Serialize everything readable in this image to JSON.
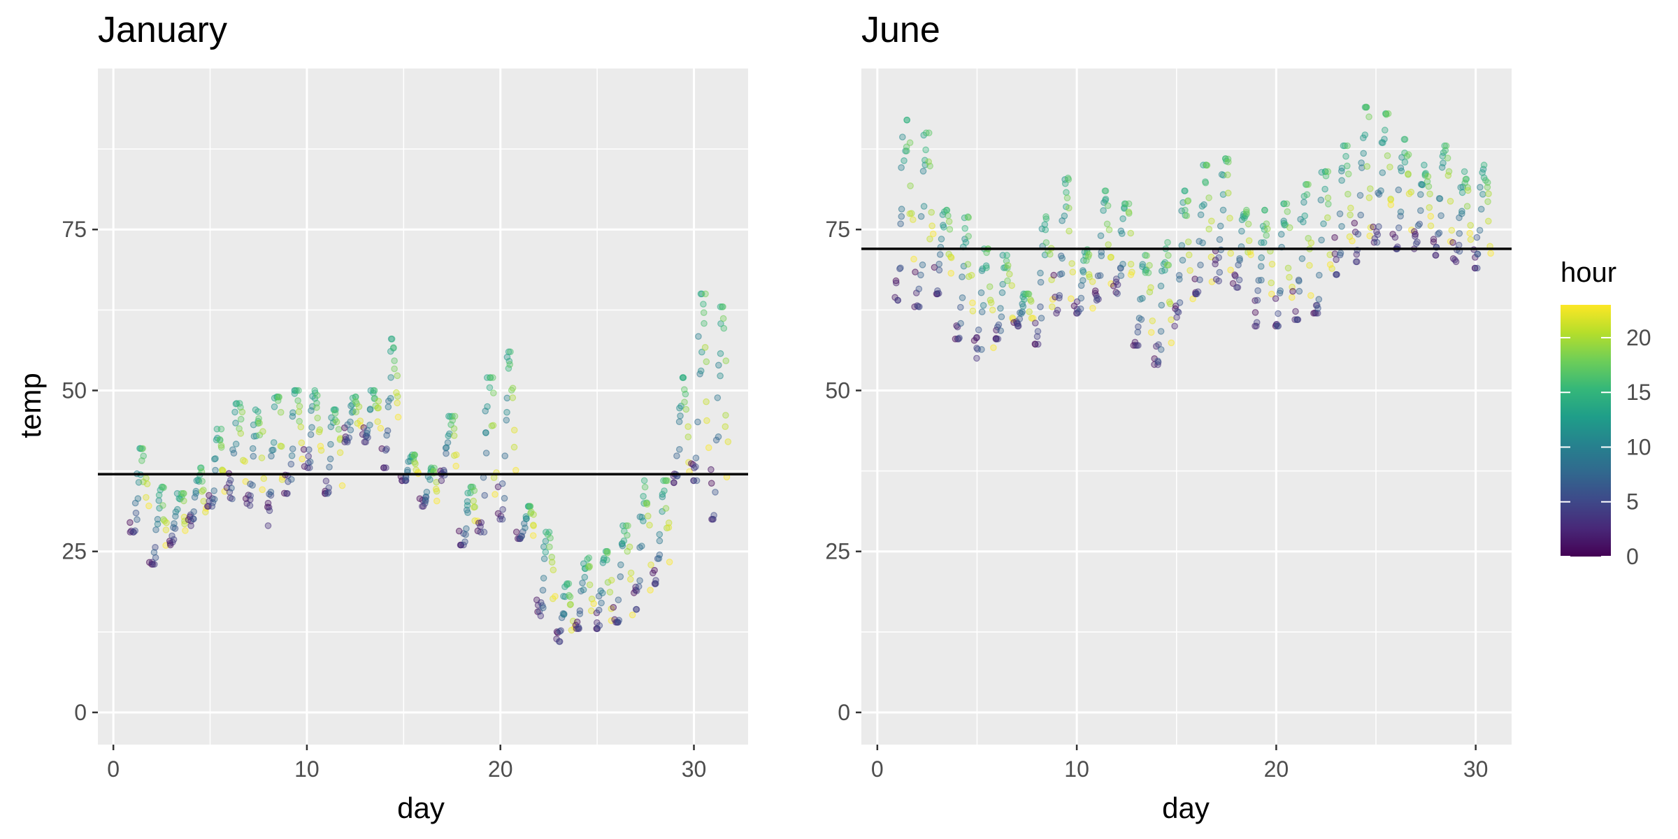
{
  "chart_data": [
    {
      "type": "scatter",
      "title": "January",
      "xlabel": "day",
      "ylabel": "temp",
      "xlim": [
        -0.8,
        32.8
      ],
      "ylim": [
        -5,
        100
      ],
      "xticks": [
        0,
        10,
        20,
        30
      ],
      "yticks": [
        0,
        25,
        50,
        75
      ],
      "hline": 37,
      "color_by": "hour",
      "point_opacity": 0.35,
      "clusters": [
        {
          "day": 1,
          "low": 28,
          "high": 41
        },
        {
          "day": 2,
          "low": 23,
          "high": 35
        },
        {
          "day": 3,
          "low": 26,
          "high": 34
        },
        {
          "day": 4,
          "low": 29,
          "high": 38
        },
        {
          "day": 5,
          "low": 32,
          "high": 44
        },
        {
          "day": 6,
          "low": 33,
          "high": 48
        },
        {
          "day": 7,
          "low": 32,
          "high": 47
        },
        {
          "day": 8,
          "low": 29,
          "high": 49
        },
        {
          "day": 9,
          "low": 34,
          "high": 50
        },
        {
          "day": 10,
          "low": 38,
          "high": 50
        },
        {
          "day": 11,
          "low": 34,
          "high": 47
        },
        {
          "day": 12,
          "low": 42,
          "high": 49
        },
        {
          "day": 13,
          "low": 42,
          "high": 50
        },
        {
          "day": 14,
          "low": 38,
          "high": 58
        },
        {
          "day": 15,
          "low": 36,
          "high": 40
        },
        {
          "day": 16,
          "low": 32,
          "high": 38
        },
        {
          "day": 17,
          "low": 36,
          "high": 46
        },
        {
          "day": 18,
          "low": 26,
          "high": 35
        },
        {
          "day": 19,
          "low": 28,
          "high": 52
        },
        {
          "day": 20,
          "low": 30,
          "high": 56
        },
        {
          "day": 21,
          "low": 27,
          "high": 32
        },
        {
          "day": 22,
          "low": 15,
          "high": 28
        },
        {
          "day": 23,
          "low": 11,
          "high": 20
        },
        {
          "day": 24,
          "low": 13,
          "high": 24
        },
        {
          "day": 25,
          "low": 13,
          "high": 25
        },
        {
          "day": 26,
          "low": 14,
          "high": 29
        },
        {
          "day": 27,
          "low": 16,
          "high": 36
        },
        {
          "day": 28,
          "low": 20,
          "high": 36
        },
        {
          "day": 29,
          "low": 35,
          "high": 52
        },
        {
          "day": 30,
          "low": 36,
          "high": 65
        },
        {
          "day": 31,
          "low": 30,
          "high": 63
        }
      ]
    },
    {
      "type": "scatter",
      "title": "June",
      "xlabel": "day",
      "ylabel": "",
      "xlim": [
        -0.8,
        31.8
      ],
      "ylim": [
        -5,
        100
      ],
      "xticks": [
        0,
        10,
        20,
        30
      ],
      "yticks": [
        0,
        25,
        50,
        75
      ],
      "hline": 72,
      "color_by": "hour",
      "point_opacity": 0.35,
      "clusters": [
        {
          "day": 1,
          "low": 64,
          "high": 92
        },
        {
          "day": 2,
          "low": 63,
          "high": 90
        },
        {
          "day": 3,
          "low": 65,
          "high": 78
        },
        {
          "day": 4,
          "low": 58,
          "high": 77
        },
        {
          "day": 5,
          "low": 55,
          "high": 72
        },
        {
          "day": 6,
          "low": 58,
          "high": 71
        },
        {
          "day": 7,
          "low": 60,
          "high": 65
        },
        {
          "day": 8,
          "low": 57,
          "high": 77
        },
        {
          "day": 9,
          "low": 62,
          "high": 83
        },
        {
          "day": 10,
          "low": 62,
          "high": 72
        },
        {
          "day": 11,
          "low": 64,
          "high": 81
        },
        {
          "day": 12,
          "low": 65,
          "high": 79
        },
        {
          "day": 13,
          "low": 57,
          "high": 71
        },
        {
          "day": 14,
          "low": 54,
          "high": 73
        },
        {
          "day": 15,
          "low": 60,
          "high": 81
        },
        {
          "day": 16,
          "low": 65,
          "high": 85
        },
        {
          "day": 17,
          "low": 67,
          "high": 86
        },
        {
          "day": 18,
          "low": 66,
          "high": 78
        },
        {
          "day": 19,
          "low": 60,
          "high": 78
        },
        {
          "day": 20,
          "low": 60,
          "high": 79
        },
        {
          "day": 21,
          "low": 61,
          "high": 82
        },
        {
          "day": 22,
          "low": 62,
          "high": 84
        },
        {
          "day": 23,
          "low": 68,
          "high": 88
        },
        {
          "day": 24,
          "low": 70,
          "high": 94
        },
        {
          "day": 25,
          "low": 73,
          "high": 93
        },
        {
          "day": 26,
          "low": 72,
          "high": 89
        },
        {
          "day": 27,
          "low": 72,
          "high": 85
        },
        {
          "day": 28,
          "low": 71,
          "high": 88
        },
        {
          "day": 29,
          "low": 70,
          "high": 84
        },
        {
          "day": 30,
          "low": 69,
          "high": 85
        }
      ]
    }
  ],
  "legend": {
    "title": "hour",
    "range": [
      0,
      23
    ],
    "ticks": [
      0,
      5,
      10,
      15,
      20
    ],
    "colors": [
      "#440154",
      "#482878",
      "#3e4989",
      "#31688e",
      "#26828e",
      "#1f9e89",
      "#35b779",
      "#6ece58",
      "#b5de2b",
      "#fde725"
    ]
  },
  "colors": {
    "panel_bg": "#ebebeb",
    "grid": "#ffffff",
    "reference_line": "#000000"
  }
}
